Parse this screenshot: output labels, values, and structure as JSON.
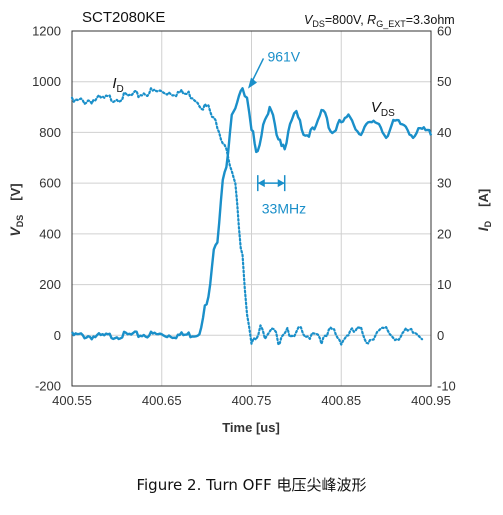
{
  "chart_data": {
    "type": "line",
    "title": "SCT2080KE",
    "conditions": {
      "v": "V",
      "v_sub": "DS",
      "v_val": "=800V, ",
      "r": "R",
      "r_sub": "G_EXT",
      "r_val": "=3.3ohm"
    },
    "xlabel": "Time [us]",
    "ylabel_left": {
      "main": "V",
      "sub": "DS",
      "unit": "[V]"
    },
    "ylabel_right": {
      "main": "I",
      "sub": "D",
      "unit": "[A]"
    },
    "xlim": [
      400.55,
      400.95
    ],
    "ylim_left": [
      -200,
      1200
    ],
    "ylim_right": [
      -10,
      60
    ],
    "x_ticks": [
      "400.55",
      "400.65",
      "400.75",
      "400.85",
      "400.95"
    ],
    "y_ticks_left": [
      "1200",
      "1000",
      "800",
      "600",
      "400",
      "200",
      "0",
      "-200"
    ],
    "y_ticks_right": [
      "60",
      "50",
      "40",
      "30",
      "20",
      "10",
      "0",
      "-10"
    ],
    "grid": true,
    "series": [
      {
        "name": "V_DS",
        "label": {
          "main": "V",
          "sub": "DS"
        },
        "axis": "left",
        "style": "solid",
        "x": [
          400.55,
          400.58,
          400.61,
          400.64,
          400.67,
          400.69,
          400.7,
          400.71,
          400.72,
          400.73,
          400.74,
          400.745,
          400.75,
          400.757,
          400.765,
          400.772,
          400.78,
          400.787,
          400.795,
          400.8,
          400.81,
          400.82,
          400.83,
          400.84,
          400.85,
          400.86,
          400.87,
          400.88,
          400.89,
          400.9,
          400.91,
          400.92,
          400.93,
          400.94,
          400.95
        ],
        "y": [
          0,
          -5,
          0,
          3,
          0,
          5,
          120,
          350,
          650,
          880,
          961,
          950,
          820,
          720,
          840,
          900,
          780,
          730,
          850,
          880,
          790,
          810,
          890,
          800,
          840,
          860,
          800,
          830,
          840,
          790,
          840,
          830,
          790,
          810,
          800
        ],
        "color": "#1a8fc9"
      },
      {
        "name": "I_D",
        "label": {
          "main": "I",
          "sub": "D"
        },
        "axis": "right",
        "style": "dotted",
        "x": [
          400.55,
          400.58,
          400.61,
          400.64,
          400.66,
          400.68,
          400.7,
          400.71,
          400.72,
          400.73,
          400.74,
          400.745,
          400.75,
          400.755,
          400.76,
          400.765,
          400.77,
          400.775,
          400.78,
          400.785,
          400.79,
          400.795,
          400.8,
          400.805,
          400.81,
          400.815,
          400.82,
          400.83,
          400.84,
          400.85,
          400.86,
          400.87,
          400.88,
          400.89,
          400.9,
          400.91,
          400.92,
          400.93,
          400.94
        ],
        "y": [
          46,
          46.5,
          47,
          48,
          48,
          47.5,
          45,
          42,
          38,
          31,
          15,
          5,
          -1,
          0,
          1.5,
          -1,
          0,
          1,
          -1,
          0.5,
          1.5,
          -1,
          0,
          1.5,
          -1,
          0,
          1,
          -1,
          1,
          -1,
          0.5,
          1,
          -1,
          0.5,
          1,
          -0.5,
          0.5,
          0.5,
          0
        ],
        "color": "#1a8fc9"
      }
    ],
    "annotations": {
      "peak_label": "961V",
      "freq_label": "33MHz",
      "peak": {
        "x": 400.745,
        "y": 961,
        "text_x": 400.77,
        "text_y": 1080
      },
      "freq": {
        "x1": 400.757,
        "x2": 400.787,
        "y": 600,
        "text_x": 400.775,
        "text_y": 520
      },
      "id_label": {
        "x": 400.595,
        "y": 975
      },
      "vds_label": {
        "x": 400.883,
        "y": 880
      }
    }
  },
  "caption": "Figure 2. Turn OFF 电压尖峰波形"
}
